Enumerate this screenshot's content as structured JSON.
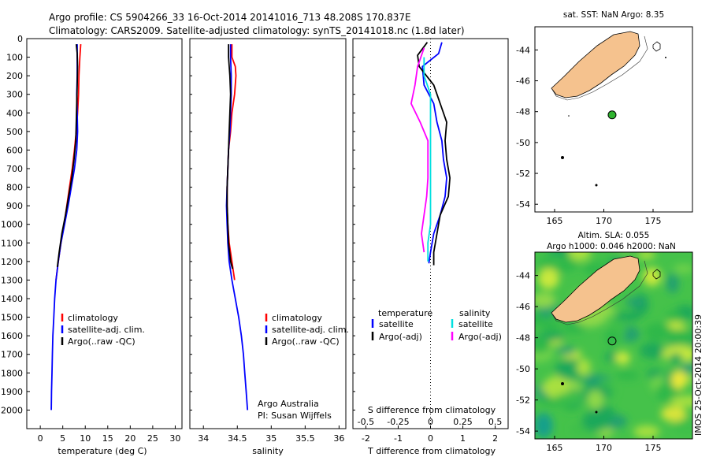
{
  "title_line1": "Argo profile: CS 5904266_33 16-Oct-2014 20141016_713 48.208S 170.837E",
  "title_line2": "Climatology: CARS2009. Satellite-adjusted climatology: synTS_20141018.nc (1.8d later)",
  "colors": {
    "climatology": "#ff0000",
    "satellite": "#0000ff",
    "argo": "#000000",
    "satellite_salinity": "#00e0e0",
    "argo_salinity": "#ff00ff",
    "land": "#f5c28e",
    "sea_map": "#40c840",
    "marker": "#2fb32f"
  },
  "chart_data": [
    {
      "type": "line",
      "ylabel": "",
      "xlabel": "temperature (deg C)",
      "x_ticks": [
        "0",
        "5",
        "10",
        "15",
        "20",
        "25",
        "30"
      ],
      "xlim": [
        -3,
        31.5
      ],
      "y_ticks": [
        "0",
        "100",
        "200",
        "300",
        "400",
        "500",
        "600",
        "700",
        "800",
        "900",
        "1000",
        "1100",
        "1200",
        "1300",
        "1400",
        "1500",
        "1600",
        "1700",
        "1800",
        "1900",
        "2000"
      ],
      "ylim": [
        0,
        2100
      ],
      "legend": [
        "climatology",
        "satellite-adj. clim.",
        "Argo(..raw -QC)"
      ],
      "series": [
        {
          "name": "climatology",
          "color": "climatology",
          "points": [
            [
              9.0,
              30
            ],
            [
              8.8,
              100
            ],
            [
              8.6,
              200
            ],
            [
              8.5,
              300
            ],
            [
              8.3,
              400
            ],
            [
              8.0,
              500
            ],
            [
              7.6,
              600
            ],
            [
              7.1,
              700
            ],
            [
              6.5,
              800
            ],
            [
              5.9,
              900
            ],
            [
              5.3,
              1000
            ],
            [
              4.6,
              1100
            ],
            [
              4.0,
              1200
            ],
            [
              3.5,
              1300
            ]
          ]
        },
        {
          "name": "satellite-adj. clim.",
          "color": "satellite",
          "points": [
            [
              8.2,
              30
            ],
            [
              8.2,
              100
            ],
            [
              8.2,
              200
            ],
            [
              8.1,
              300
            ],
            [
              8.2,
              400
            ],
            [
              8.3,
              500
            ],
            [
              8.1,
              600
            ],
            [
              7.6,
              700
            ],
            [
              6.9,
              800
            ],
            [
              6.2,
              900
            ],
            [
              5.4,
              1000
            ],
            [
              4.6,
              1100
            ],
            [
              4.0,
              1200
            ],
            [
              3.5,
              1300
            ],
            [
              3.2,
              1400
            ],
            [
              3.0,
              1500
            ],
            [
              2.8,
              1600
            ],
            [
              2.7,
              1700
            ],
            [
              2.6,
              1800
            ],
            [
              2.5,
              1900
            ],
            [
              2.45,
              2000
            ]
          ]
        },
        {
          "name": "Argo(..raw -QC)",
          "color": "argo",
          "points": [
            [
              8.0,
              30
            ],
            [
              8.2,
              80
            ],
            [
              8.3,
              150
            ],
            [
              8.2,
              250
            ],
            [
              8.1,
              350
            ],
            [
              8.0,
              450
            ],
            [
              7.9,
              550
            ],
            [
              7.5,
              650
            ],
            [
              7.0,
              750
            ],
            [
              6.3,
              850
            ],
            [
              5.6,
              950
            ],
            [
              4.8,
              1050
            ],
            [
              4.2,
              1150
            ],
            [
              3.8,
              1230
            ]
          ]
        }
      ]
    },
    {
      "type": "line",
      "xlabel": "salinity",
      "x_ticks": [
        "34",
        "34.5",
        "35",
        "35.5",
        "36"
      ],
      "xlim": [
        33.8,
        36.1
      ],
      "ylim": [
        0,
        2100
      ],
      "legend": [
        "climatology",
        "satellite-adj. clim.",
        "Argo(..raw -QC)"
      ],
      "annotation": [
        "Argo Australia",
        "PI: Susan Wijffels"
      ],
      "series": [
        {
          "name": "climatology",
          "color": "climatology",
          "points": [
            [
              34.42,
              30
            ],
            [
              34.42,
              100
            ],
            [
              34.47,
              150
            ],
            [
              34.48,
              200
            ],
            [
              34.46,
              300
            ],
            [
              34.42,
              400
            ],
            [
              34.4,
              500
            ],
            [
              34.37,
              600
            ],
            [
              34.36,
              700
            ],
            [
              34.35,
              800
            ],
            [
              34.35,
              900
            ],
            [
              34.36,
              1000
            ],
            [
              34.38,
              1100
            ],
            [
              34.42,
              1200
            ],
            [
              34.46,
              1300
            ]
          ]
        },
        {
          "name": "satellite-adj. clim.",
          "color": "satellite",
          "points": [
            [
              34.4,
              30
            ],
            [
              34.4,
              100
            ],
            [
              34.41,
              200
            ],
            [
              34.41,
              300
            ],
            [
              34.4,
              400
            ],
            [
              34.39,
              500
            ],
            [
              34.37,
              600
            ],
            [
              34.36,
              700
            ],
            [
              34.35,
              800
            ],
            [
              34.34,
              900
            ],
            [
              34.35,
              1000
            ],
            [
              34.36,
              1100
            ],
            [
              34.38,
              1200
            ],
            [
              34.42,
              1300
            ],
            [
              34.47,
              1400
            ],
            [
              34.52,
              1500
            ],
            [
              34.56,
              1600
            ],
            [
              34.59,
              1700
            ],
            [
              34.61,
              1800
            ],
            [
              34.63,
              1900
            ],
            [
              34.65,
              2000
            ]
          ]
        },
        {
          "name": "Argo(..raw -QC)",
          "color": "argo",
          "points": [
            [
              34.37,
              30
            ],
            [
              34.37,
              100
            ],
            [
              34.39,
              200
            ],
            [
              34.4,
              300
            ],
            [
              34.39,
              400
            ],
            [
              34.38,
              500
            ],
            [
              34.37,
              600
            ],
            [
              34.36,
              700
            ],
            [
              34.35,
              800
            ],
            [
              34.35,
              900
            ],
            [
              34.36,
              1000
            ],
            [
              34.37,
              1100
            ],
            [
              34.4,
              1200
            ],
            [
              34.43,
              1240
            ]
          ]
        }
      ]
    },
    {
      "type": "line",
      "xlabel": "T difference from climatology",
      "xlabel_top": "S difference from climatology",
      "x_ticks_T": [
        "-2",
        "-1",
        "0",
        "1",
        "2"
      ],
      "x_ticks_S": [
        "-0.5",
        "-0.25",
        "0",
        "0.25",
        "0.5"
      ],
      "xlim_T": [
        -2.4,
        2.4
      ],
      "ylim": [
        0,
        2100
      ],
      "legend_left_title": "temperature",
      "legend_right_title": "salinity",
      "legend_left": [
        "satellite",
        "Argo(-adj)"
      ],
      "legend_right": [
        "satellite",
        "Argo(-adj)"
      ],
      "series": [
        {
          "name": "T satellite",
          "color": "satellite",
          "points": [
            [
              0.35,
              20
            ],
            [
              0.25,
              80
            ],
            [
              -0.25,
              150
            ],
            [
              -0.2,
              250
            ],
            [
              0.1,
              350
            ],
            [
              0.2,
              450
            ],
            [
              0.35,
              550
            ],
            [
              0.4,
              650
            ],
            [
              0.5,
              750
            ],
            [
              0.45,
              850
            ],
            [
              0.3,
              950
            ],
            [
              0.1,
              1050
            ],
            [
              0,
              1150
            ],
            [
              -0.05,
              1210
            ]
          ]
        },
        {
          "name": "T Argo(-adj)",
          "color": "argo",
          "points": [
            [
              -0.1,
              20
            ],
            [
              -0.4,
              90
            ],
            [
              -0.35,
              150
            ],
            [
              0.1,
              250
            ],
            [
              0.3,
              350
            ],
            [
              0.5,
              450
            ],
            [
              0.45,
              550
            ],
            [
              0.5,
              650
            ],
            [
              0.6,
              750
            ],
            [
              0.55,
              850
            ],
            [
              0.3,
              950
            ],
            [
              0.2,
              1050
            ],
            [
              0.1,
              1150
            ],
            [
              0.1,
              1220
            ]
          ]
        },
        {
          "name": "S satellite",
          "color": "satellite_salinity",
          "points": [
            [
              -0.05,
              100
            ],
            [
              -0.05,
              200
            ],
            [
              0,
              300
            ],
            [
              0,
              400
            ],
            [
              0,
              500
            ],
            [
              0,
              600
            ],
            [
              0,
              700
            ],
            [
              0,
              800
            ],
            [
              0,
              900
            ],
            [
              0,
              1000
            ],
            [
              -0.02,
              1100
            ],
            [
              -0.02,
              1200
            ]
          ]
        },
        {
          "name": "S Argo(-adj)",
          "color": "argo_salinity",
          "points": [
            [
              -0.05,
              50
            ],
            [
              -0.1,
              150
            ],
            [
              -0.12,
              250
            ],
            [
              -0.15,
              350
            ],
            [
              -0.08,
              450
            ],
            [
              -0.02,
              550
            ],
            [
              -0.02,
              650
            ],
            [
              -0.02,
              750
            ],
            [
              -0.03,
              850
            ],
            [
              -0.05,
              950
            ],
            [
              -0.07,
              1050
            ],
            [
              -0.05,
              1150
            ]
          ]
        }
      ]
    },
    {
      "type": "scatter",
      "title": "sat. SST: NaN Argo: 8.35",
      "x_ticks": [
        "165",
        "170",
        "175"
      ],
      "y_ticks": [
        "-44",
        "-46",
        "-48",
        "-50",
        "-52",
        "-54"
      ],
      "xlim": [
        163,
        179
      ],
      "ylim": [
        -54.5,
        -42.5
      ],
      "marker": [
        170.837,
        -48.208
      ]
    },
    {
      "type": "heatmap",
      "title_line1": "Altim. SLA: 0.055",
      "title_line2": "Argo h1000: 0.046 h2000: NaN",
      "side_label": "IMOS 25-Oct-2014 20:00:39",
      "x_ticks": [
        "165",
        "170",
        "175"
      ],
      "y_ticks": [
        "-44",
        "-46",
        "-48",
        "-50",
        "-52",
        "-54"
      ],
      "xlim": [
        163,
        179
      ],
      "ylim": [
        -54.5,
        -42.5
      ],
      "marker": [
        170.837,
        -48.208
      ]
    }
  ]
}
